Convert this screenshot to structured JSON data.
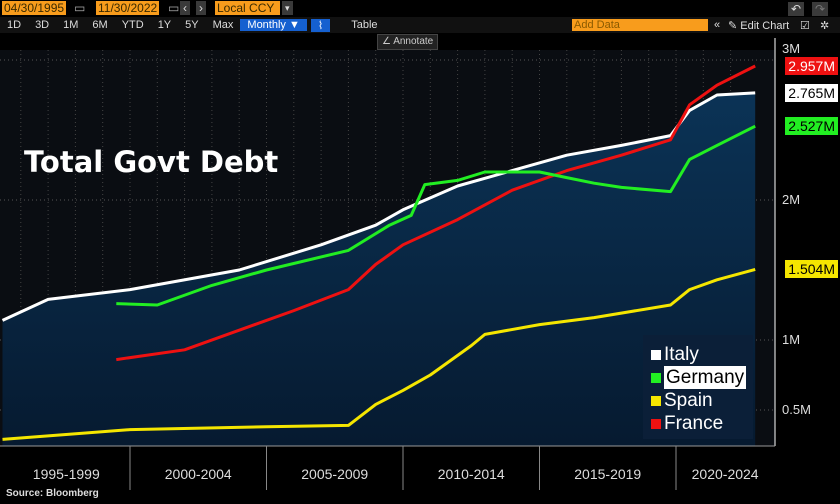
{
  "toolbar": {
    "start_date": "04/30/1995",
    "end_date": "11/30/2022",
    "currency": "Local CCY",
    "add_data_placeholder": "Add Data",
    "edit_chart": "Edit Chart",
    "annotate": "Annotate",
    "table": "Table",
    "periods": [
      "1D",
      "3D",
      "1M",
      "6M",
      "YTD",
      "1Y",
      "5Y",
      "Max"
    ],
    "frequency": "Monthly ▼"
  },
  "source": "Source: Bloomberg",
  "chart_data": {
    "type": "line",
    "title": "Total Govt Debt",
    "ylim": [
      0.25,
      3.1
    ],
    "xlim": [
      1995.33,
      2023.6
    ],
    "yticks": [
      {
        "v": 0.5,
        "label": "0.5M"
      },
      {
        "v": 1,
        "label": "1M"
      },
      {
        "v": 2,
        "label": "2M"
      },
      {
        "v": 3,
        "label": "3M"
      }
    ],
    "xbands": [
      {
        "from": 1995.33,
        "to": 2000,
        "label": "1995-1999"
      },
      {
        "from": 2000,
        "to": 2005,
        "label": "2000-2004"
      },
      {
        "from": 2005,
        "to": 2010,
        "label": "2005-2009"
      },
      {
        "from": 2010,
        "to": 2015,
        "label": "2010-2014"
      },
      {
        "from": 2015,
        "to": 2020,
        "label": "2015-2019"
      },
      {
        "from": 2020,
        "to": 2023.6,
        "label": "2020-2024"
      }
    ],
    "series": [
      {
        "name": "Italy",
        "color": "#ffffff",
        "last_label": "2.765M",
        "area": true,
        "x": [
          1995.33,
          1997,
          2000,
          2004,
          2007,
          2009,
          2010,
          2012,
          2014,
          2016,
          2018,
          2019.8,
          2020.5,
          2021.5,
          2022.9
        ],
        "y": [
          1.14,
          1.29,
          1.36,
          1.5,
          1.68,
          1.82,
          1.93,
          2.1,
          2.21,
          2.32,
          2.39,
          2.46,
          2.64,
          2.75,
          2.765
        ]
      },
      {
        "name": "Germany",
        "color": "#22ee22",
        "last_label": "2.527M",
        "x": [
          1999.5,
          2001,
          2003,
          2005,
          2008,
          2009.5,
          2010.3,
          2010.8,
          2012,
          2013,
          2015,
          2016,
          2017,
          2018,
          2019.8,
          2020.5,
          2021.5,
          2022.9
        ],
        "y": [
          1.26,
          1.25,
          1.39,
          1.5,
          1.64,
          1.82,
          1.89,
          2.11,
          2.14,
          2.2,
          2.2,
          2.16,
          2.12,
          2.09,
          2.06,
          2.29,
          2.39,
          2.527
        ]
      },
      {
        "name": "Spain",
        "color": "#f5e600",
        "last_label": "1.504M",
        "x": [
          1995.33,
          2000,
          2005,
          2008,
          2009,
          2010,
          2011,
          2012.5,
          2013,
          2015,
          2017,
          2019.8,
          2020.5,
          2021.5,
          2022.9
        ],
        "y": [
          0.29,
          0.36,
          0.38,
          0.39,
          0.54,
          0.64,
          0.75,
          0.96,
          1.04,
          1.11,
          1.16,
          1.25,
          1.36,
          1.43,
          1.504
        ]
      },
      {
        "name": "France",
        "color": "#ee1111",
        "last_label": "2.957M",
        "x": [
          1999.5,
          2002,
          2004,
          2006,
          2008,
          2009,
          2010,
          2012,
          2014,
          2016,
          2018,
          2019.8,
          2020.5,
          2021.5,
          2022.9
        ],
        "y": [
          0.86,
          0.93,
          1.07,
          1.21,
          1.36,
          1.54,
          1.68,
          1.86,
          2.07,
          2.21,
          2.32,
          2.43,
          2.68,
          2.82,
          2.957
        ]
      }
    ],
    "legend": {
      "placement": "bottom-right",
      "highlighted": "Germany"
    }
  }
}
